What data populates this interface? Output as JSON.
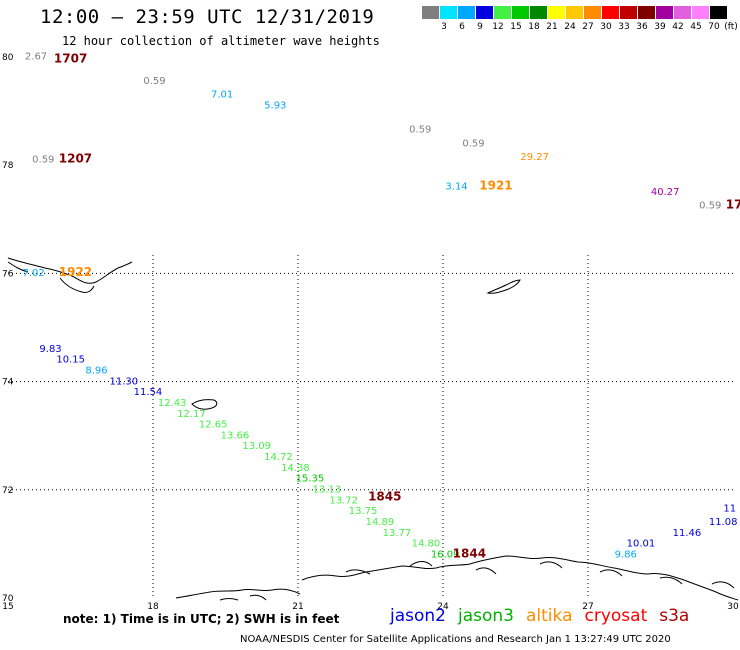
{
  "header": {
    "title": "12:00 – 23:59 UTC 12/31/2019",
    "subtitle": "12 hour collection of altimeter wave heights"
  },
  "colorbar": {
    "swatches": [
      {
        "label": "3",
        "color": "#7f7f7f"
      },
      {
        "label": "6",
        "color": "#00e5ff"
      },
      {
        "label": "9",
        "color": "#00a8ff"
      },
      {
        "label": "12",
        "color": "#0000e0"
      },
      {
        "label": "15",
        "color": "#44f044"
      },
      {
        "label": "18",
        "color": "#00c800"
      },
      {
        "label": "21",
        "color": "#008800"
      },
      {
        "label": "24",
        "color": "#ffff00"
      },
      {
        "label": "27",
        "color": "#ffc800"
      },
      {
        "label": "30",
        "color": "#ff8c00"
      },
      {
        "label": "33",
        "color": "#ff0000"
      },
      {
        "label": "36",
        "color": "#c00000"
      },
      {
        "label": "39",
        "color": "#800000"
      },
      {
        "label": "42",
        "color": "#a000a0"
      },
      {
        "label": "45",
        "color": "#e060e0"
      },
      {
        "label": "70",
        "color": "#ff80ff"
      },
      {
        "label": "",
        "color": "#000000"
      }
    ],
    "unit": "(ft)"
  },
  "map": {
    "lat_labels": [
      "80",
      "78",
      "76",
      "74",
      "72",
      "70"
    ],
    "lon_labels": [
      "15",
      "18",
      "21",
      "24",
      "27",
      "30"
    ],
    "observations": [
      {
        "text": "2.67",
        "lat": 79.95,
        "lon": 15.35,
        "color": "#7f7f7f"
      },
      {
        "text": "0.59",
        "lat": 79.5,
        "lon": 17.8,
        "color": "#7f7f7f"
      },
      {
        "text": "7.01",
        "lat": 79.25,
        "lon": 19.2,
        "color": "#00a8ff"
      },
      {
        "text": "5.93",
        "lat": 79.05,
        "lon": 20.3,
        "color": "#00a8ff"
      },
      {
        "text": "0.59",
        "lat": 78.6,
        "lon": 23.3,
        "color": "#7f7f7f"
      },
      {
        "text": "0.59",
        "lat": 78.35,
        "lon": 24.4,
        "color": "#7f7f7f"
      },
      {
        "text": "0.59",
        "lat": 78.05,
        "lon": 15.5,
        "color": "#7f7f7f"
      },
      {
        "text": "29.27",
        "lat": 78.1,
        "lon": 25.6,
        "color": "#ff8c00"
      },
      {
        "text": "3.14",
        "lat": 77.55,
        "lon": 24.05,
        "color": "#00a8ff"
      },
      {
        "text": "40.27",
        "lat": 77.45,
        "lon": 28.3,
        "color": "#a000a0"
      },
      {
        "text": "0.59",
        "lat": 77.2,
        "lon": 29.3,
        "color": "#7f7f7f"
      },
      {
        "text": "7.02",
        "lat": 75.95,
        "lon": 15.3,
        "color": "#00a8ff"
      },
      {
        "text": "9.83",
        "lat": 74.55,
        "lon": 15.65,
        "color": "#0000e0"
      },
      {
        "text": "10.15",
        "lat": 74.35,
        "lon": 16.0,
        "color": "#0000e0"
      },
      {
        "text": "8.96",
        "lat": 74.15,
        "lon": 16.6,
        "color": "#00a8ff"
      },
      {
        "text": "11.30",
        "lat": 73.95,
        "lon": 17.1,
        "color": "#0000e0"
      },
      {
        "text": "11.54",
        "lat": 73.75,
        "lon": 17.6,
        "color": "#0000e0"
      },
      {
        "text": "12.43",
        "lat": 73.55,
        "lon": 18.1,
        "color": "#44f044"
      },
      {
        "text": "12.17",
        "lat": 73.35,
        "lon": 18.5,
        "color": "#44f044"
      },
      {
        "text": "12.65",
        "lat": 73.15,
        "lon": 18.95,
        "color": "#44f044"
      },
      {
        "text": "13.66",
        "lat": 72.95,
        "lon": 19.4,
        "color": "#44f044"
      },
      {
        "text": "13.09",
        "lat": 72.75,
        "lon": 19.85,
        "color": "#44f044"
      },
      {
        "text": "14.72",
        "lat": 72.55,
        "lon": 20.3,
        "color": "#44f044"
      },
      {
        "text": "14.38",
        "lat": 72.35,
        "lon": 20.65,
        "color": "#44f044"
      },
      {
        "text": "15.35",
        "lat": 72.15,
        "lon": 20.95,
        "color": "#00c800"
      },
      {
        "text": "13.13",
        "lat": 71.95,
        "lon": 21.3,
        "color": "#44f044"
      },
      {
        "text": "13.72",
        "lat": 71.75,
        "lon": 21.65,
        "color": "#44f044"
      },
      {
        "text": "13.75",
        "lat": 71.55,
        "lon": 22.05,
        "color": "#44f044"
      },
      {
        "text": "14.89",
        "lat": 71.35,
        "lon": 22.4,
        "color": "#44f044"
      },
      {
        "text": "13.77",
        "lat": 71.15,
        "lon": 22.75,
        "color": "#44f044"
      },
      {
        "text": "14.80",
        "lat": 70.95,
        "lon": 23.35,
        "color": "#44f044"
      },
      {
        "text": "16.09",
        "lat": 70.75,
        "lon": 23.75,
        "color": "#00c800"
      },
      {
        "text": "9.86",
        "lat": 70.75,
        "lon": 27.55,
        "color": "#00a8ff"
      },
      {
        "text": "10.01",
        "lat": 70.95,
        "lon": 27.8,
        "color": "#0000e0"
      },
      {
        "text": "11.46",
        "lat": 71.15,
        "lon": 28.75,
        "color": "#0000e0"
      },
      {
        "text": "11.08",
        "lat": 71.35,
        "lon": 29.5,
        "color": "#0000e0"
      },
      {
        "text": "11",
        "lat": 71.6,
        "lon": 29.8,
        "color": "#0000e0"
      }
    ],
    "times": [
      {
        "text": "1707",
        "lat": 79.9,
        "lon": 15.95,
        "color": "#800000"
      },
      {
        "text": "1207",
        "lat": 78.05,
        "lon": 16.05,
        "color": "#800000"
      },
      {
        "text": "1921",
        "lat": 77.55,
        "lon": 24.75,
        "color": "#ff8c00"
      },
      {
        "text": "17",
        "lat": 77.2,
        "lon": 29.85,
        "color": "#800000"
      },
      {
        "text": "1922",
        "lat": 75.95,
        "lon": 16.05,
        "color": "#ff8c00"
      },
      {
        "text": "1845",
        "lat": 71.8,
        "lon": 22.45,
        "color": "#800000"
      },
      {
        "text": "1844",
        "lat": 70.75,
        "lon": 24.2,
        "color": "#800000"
      }
    ]
  },
  "note": "note: 1) Time is in UTC; 2) SWH is in feet",
  "legend": [
    {
      "label": "jason2",
      "color": "#0000e0"
    },
    {
      "label": "jason3",
      "color": "#00b000"
    },
    {
      "label": "altika",
      "color": "#ff8c00"
    },
    {
      "label": "cryosat",
      "color": "#ff0000"
    },
    {
      "label": "s3a",
      "color": "#b00000"
    }
  ],
  "footer": "NOAA/NESDIS Center for Satellite Applications and Research    Jan  1 13:27:49 UTC 2020"
}
